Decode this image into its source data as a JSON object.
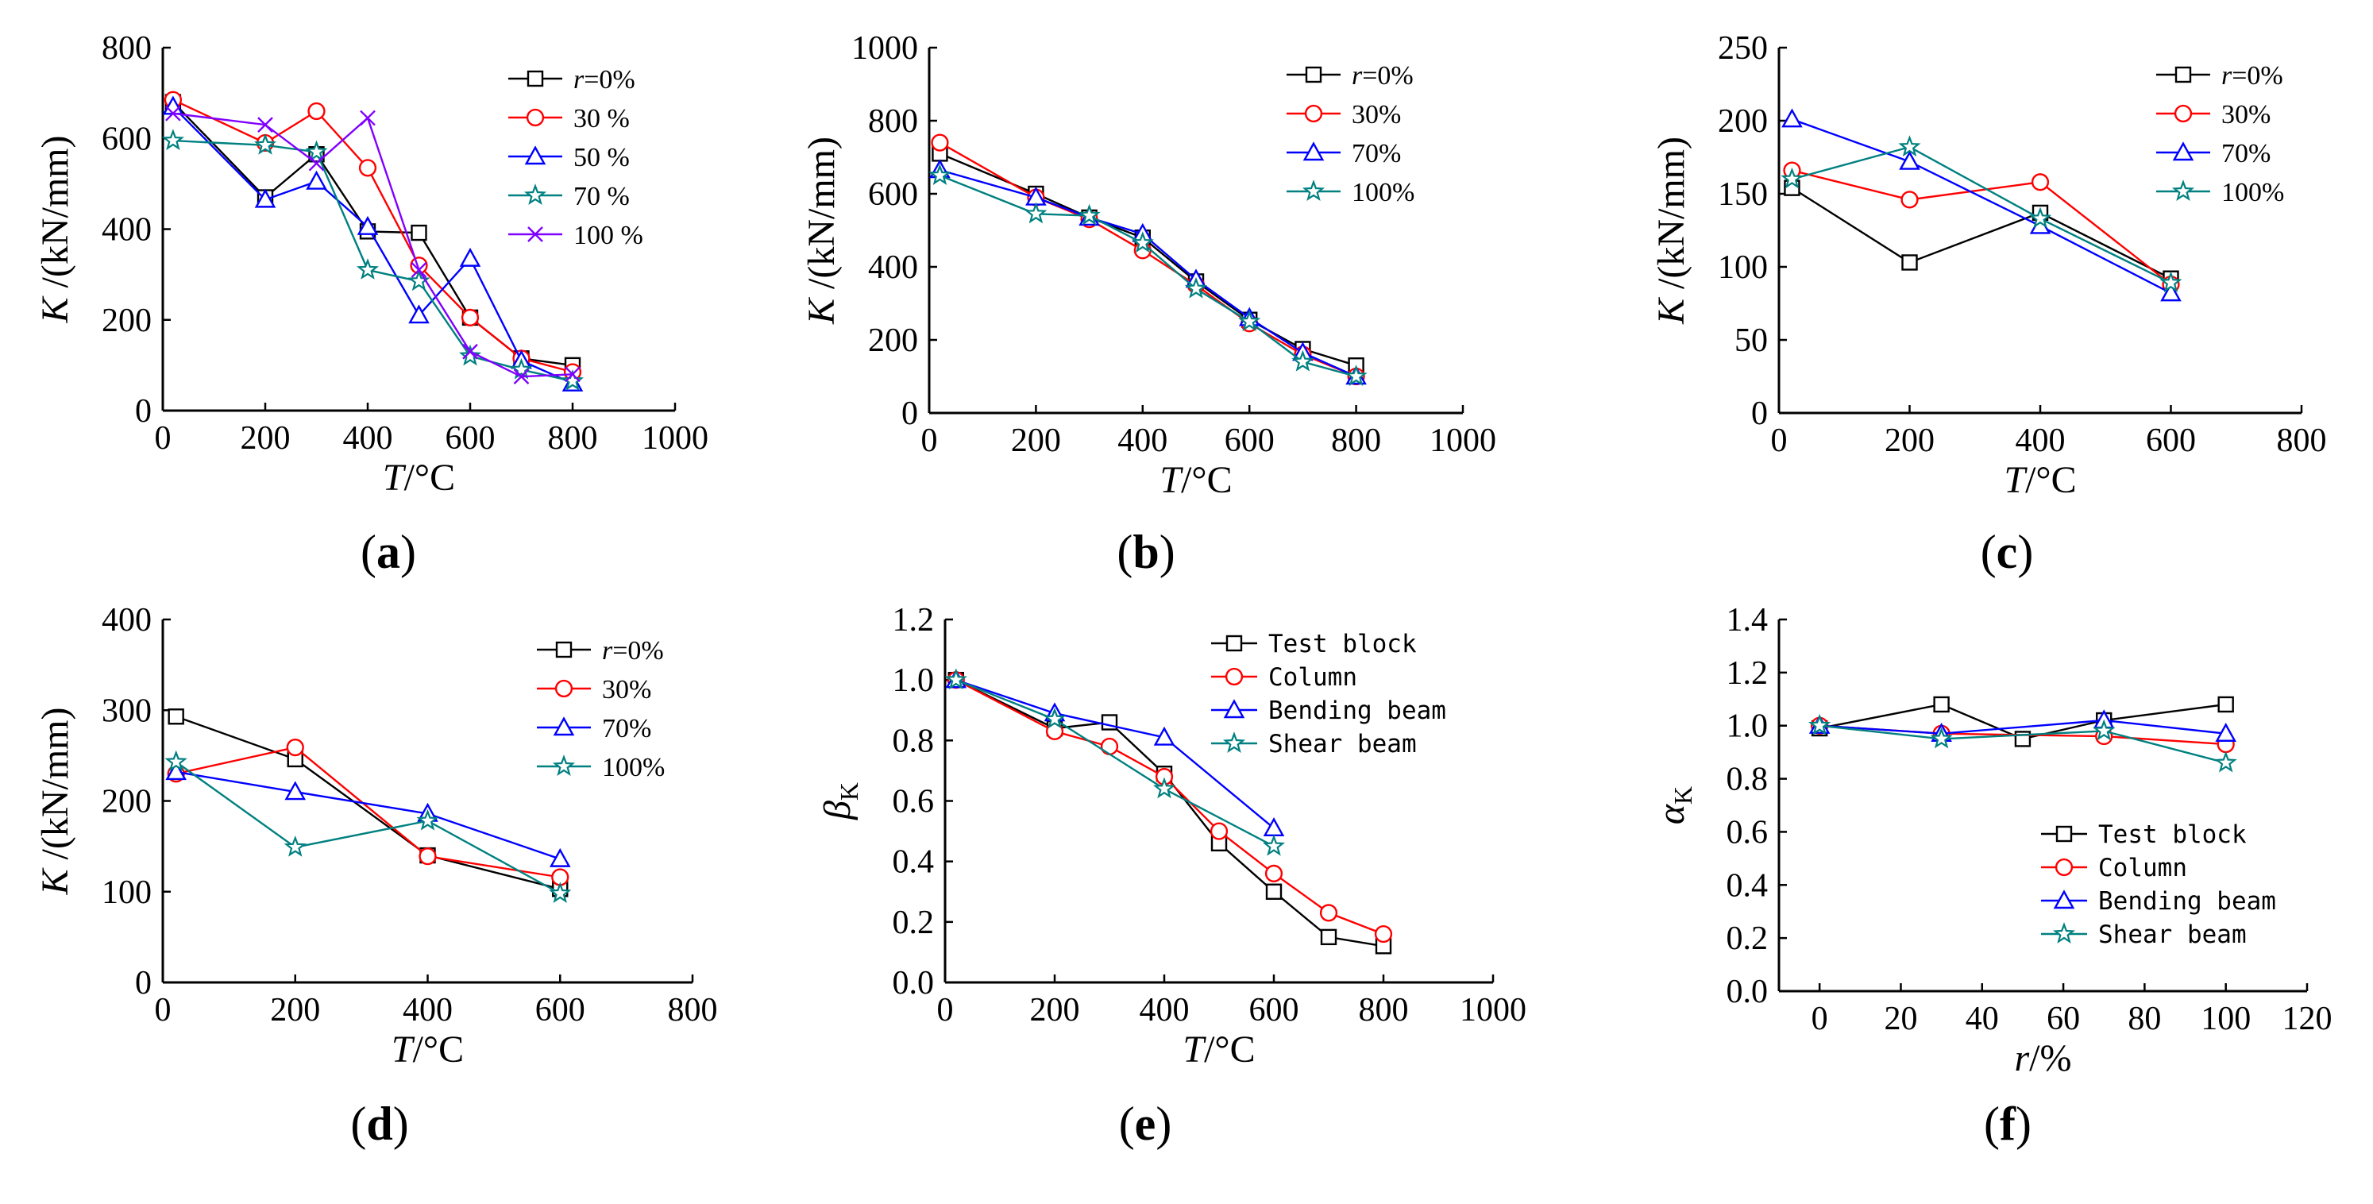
{
  "chart_data": [
    {
      "id": "a",
      "panel_label": "(a)",
      "type": "line",
      "xlabel_italic": "T",
      "xlabel_rest": "/°C",
      "ylabel_italic": "K",
      "ylabel_rest": " /(kN/mm)",
      "ylabel_sub": "",
      "xlim": [
        0,
        1000
      ],
      "ylim": [
        0,
        800
      ],
      "xticks": [
        0,
        200,
        400,
        600,
        800,
        1000
      ],
      "yticks": [
        0,
        200,
        400,
        600,
        800
      ],
      "ytick_decimals": 0,
      "legend_style": "serif",
      "legend_position": "top-right",
      "series": [
        {
          "name": "r=0%",
          "name_italic": "r",
          "name_rest": "=0%",
          "color": "#000000",
          "marker": "square",
          "x": [
            20,
            200,
            300,
            400,
            500,
            600,
            700,
            800
          ],
          "y": [
            680,
            470,
            565,
            395,
            392,
            205,
            115,
            100
          ]
        },
        {
          "name": "30 %",
          "color": "#ff0000",
          "marker": "circle",
          "x": [
            20,
            200,
            300,
            400,
            500,
            600,
            700,
            800
          ],
          "y": [
            685,
            590,
            660,
            535,
            320,
            205,
            115,
            85
          ]
        },
        {
          "name": "50 %",
          "color": "#0000ff",
          "marker": "triangle",
          "x": [
            20,
            200,
            300,
            400,
            500,
            600,
            700,
            800
          ],
          "y": [
            670,
            465,
            505,
            405,
            210,
            335,
            110,
            60
          ]
        },
        {
          "name": "70 %",
          "color": "#008080",
          "marker": "star",
          "x": [
            20,
            200,
            300,
            400,
            500,
            600,
            700,
            800
          ],
          "y": [
            595,
            585,
            570,
            310,
            285,
            120,
            90,
            65
          ]
        },
        {
          "name": "100 %",
          "color": "#8000ff",
          "marker": "x",
          "x": [
            20,
            200,
            300,
            400,
            500,
            600,
            700,
            800
          ],
          "y": [
            655,
            630,
            545,
            645,
            310,
            130,
            75,
            80
          ]
        }
      ]
    },
    {
      "id": "b",
      "panel_label": "(b)",
      "type": "line",
      "xlabel_italic": "T",
      "xlabel_rest": "/°C",
      "ylabel_italic": "K",
      "ylabel_rest": " /(kN/mm)",
      "ylabel_sub": "",
      "xlim": [
        0,
        1000
      ],
      "ylim": [
        0,
        1000
      ],
      "xticks": [
        0,
        200,
        400,
        600,
        800,
        1000
      ],
      "yticks": [
        0,
        200,
        400,
        600,
        800,
        1000
      ],
      "ytick_decimals": 0,
      "legend_style": "serif",
      "legend_position": "top-right",
      "series": [
        {
          "name": "r=0%",
          "name_italic": "r",
          "name_rest": "=0%",
          "color": "#000000",
          "marker": "square",
          "x": [
            20,
            200,
            300,
            400,
            500,
            600,
            700,
            800
          ],
          "y": [
            710,
            600,
            535,
            480,
            360,
            255,
            175,
            130
          ]
        },
        {
          "name": "30%",
          "color": "#ff0000",
          "marker": "circle",
          "x": [
            20,
            200,
            300,
            400,
            500,
            600,
            700,
            800
          ],
          "y": [
            740,
            590,
            530,
            445,
            350,
            245,
            160,
            100
          ]
        },
        {
          "name": "70%",
          "color": "#0000ff",
          "marker": "triangle",
          "x": [
            20,
            200,
            300,
            400,
            500,
            600,
            700,
            800
          ],
          "y": [
            665,
            590,
            535,
            490,
            365,
            260,
            165,
            100
          ]
        },
        {
          "name": "100%",
          "color": "#008080",
          "marker": "star",
          "x": [
            20,
            200,
            300,
            400,
            500,
            600,
            700,
            800
          ],
          "y": [
            650,
            545,
            540,
            465,
            340,
            250,
            140,
            100
          ]
        }
      ]
    },
    {
      "id": "c",
      "panel_label": "(c)",
      "type": "line",
      "xlabel_italic": "T",
      "xlabel_rest": "/°C",
      "ylabel_italic": "K",
      "ylabel_rest": " /(kN/mm)",
      "ylabel_sub": "",
      "xlim": [
        0,
        800
      ],
      "ylim": [
        0,
        250
      ],
      "xticks": [
        0,
        200,
        400,
        600,
        800
      ],
      "yticks": [
        0,
        50,
        100,
        150,
        200,
        250
      ],
      "ytick_decimals": 0,
      "legend_style": "serif",
      "legend_position": "top-right",
      "series": [
        {
          "name": "r=0%",
          "name_italic": "r",
          "name_rest": "=0%",
          "color": "#000000",
          "marker": "square",
          "x": [
            20,
            200,
            400,
            600
          ],
          "y": [
            154,
            103,
            137,
            92
          ]
        },
        {
          "name": "30%",
          "color": "#ff0000",
          "marker": "circle",
          "x": [
            20,
            200,
            400,
            600
          ],
          "y": [
            166,
            146,
            158,
            88
          ]
        },
        {
          "name": "70%",
          "color": "#0000ff",
          "marker": "triangle",
          "x": [
            20,
            200,
            400,
            600
          ],
          "y": [
            201,
            172,
            128,
            82
          ]
        },
        {
          "name": "100%",
          "color": "#008080",
          "marker": "star",
          "x": [
            20,
            200,
            400,
            600
          ],
          "y": [
            160,
            182,
            133,
            89
          ]
        }
      ]
    },
    {
      "id": "d",
      "panel_label": "(d)",
      "type": "line",
      "xlabel_italic": "T",
      "xlabel_rest": "/°C",
      "ylabel_italic": "K",
      "ylabel_rest": " /(kN/mm)",
      "ylabel_sub": "",
      "xlim": [
        0,
        800
      ],
      "ylim": [
        0,
        400
      ],
      "xticks": [
        0,
        200,
        400,
        600,
        800
      ],
      "yticks": [
        0,
        100,
        200,
        300,
        400
      ],
      "ytick_decimals": 0,
      "legend_style": "serif",
      "legend_position": "top-right",
      "series": [
        {
          "name": "r=0%",
          "name_italic": "r",
          "name_rest": "=0%",
          "color": "#000000",
          "marker": "square",
          "x": [
            20,
            200,
            400,
            600
          ],
          "y": [
            293,
            246,
            140,
            103
          ]
        },
        {
          "name": "30%",
          "color": "#ff0000",
          "marker": "circle",
          "x": [
            20,
            200,
            400,
            600
          ],
          "y": [
            230,
            259,
            139,
            116
          ]
        },
        {
          "name": "70%",
          "color": "#0000ff",
          "marker": "triangle",
          "x": [
            20,
            200,
            400,
            600
          ],
          "y": [
            232,
            210,
            186,
            136
          ]
        },
        {
          "name": "100%",
          "color": "#008080",
          "marker": "star",
          "x": [
            20,
            200,
            400,
            600
          ],
          "y": [
            243,
            149,
            178,
            98
          ]
        }
      ]
    },
    {
      "id": "e",
      "panel_label": "(e)",
      "type": "line",
      "xlabel_italic": "T",
      "xlabel_rest": "/°C",
      "ylabel_italic": "β",
      "ylabel_rest": "",
      "ylabel_sub": "K",
      "xlim": [
        0,
        1000
      ],
      "ylim": [
        0,
        1.2
      ],
      "xticks": [
        0,
        200,
        400,
        600,
        800,
        1000
      ],
      "yticks": [
        0.0,
        0.2,
        0.4,
        0.6,
        0.8,
        1.0,
        1.2
      ],
      "ytick_decimals": 1,
      "legend_style": "mono",
      "legend_position": "top-right",
      "series": [
        {
          "name": "Test block",
          "color": "#000000",
          "marker": "square",
          "x": [
            20,
            200,
            300,
            400,
            500,
            600,
            700,
            800
          ],
          "y": [
            1.0,
            0.84,
            0.86,
            0.69,
            0.46,
            0.3,
            0.15,
            0.12
          ]
        },
        {
          "name": "Column",
          "color": "#ff0000",
          "marker": "circle",
          "x": [
            20,
            200,
            300,
            400,
            500,
            600,
            700,
            800
          ],
          "y": [
            1.0,
            0.83,
            0.78,
            0.68,
            0.5,
            0.36,
            0.23,
            0.16
          ]
        },
        {
          "name": "Bending beam",
          "color": "#0000ff",
          "marker": "triangle",
          "x": [
            20,
            200,
            400,
            600
          ],
          "y": [
            1.0,
            0.89,
            0.81,
            0.51
          ]
        },
        {
          "name": "Shear beam",
          "color": "#008080",
          "marker": "star",
          "x": [
            20,
            200,
            400,
            600
          ],
          "y": [
            1.0,
            0.87,
            0.64,
            0.45
          ]
        }
      ]
    },
    {
      "id": "f",
      "panel_label": "(f)",
      "type": "line",
      "xlabel_italic": "r",
      "xlabel_rest": "/%",
      "ylabel_italic": "α",
      "ylabel_rest": "",
      "ylabel_sub": "K",
      "xlim": [
        -10,
        120
      ],
      "ylim": [
        0,
        1.4
      ],
      "xticks": [
        0,
        20,
        40,
        60,
        80,
        100,
        120
      ],
      "yticks": [
        0.0,
        0.2,
        0.4,
        0.6,
        0.8,
        1.0,
        1.2,
        1.4
      ],
      "ytick_decimals": 1,
      "legend_style": "mono",
      "legend_position": "bottom-right",
      "series": [
        {
          "name": "Test block",
          "color": "#000000",
          "marker": "square",
          "x": [
            0,
            30,
            50,
            70,
            100
          ],
          "y": [
            0.99,
            1.08,
            0.95,
            1.02,
            1.08
          ]
        },
        {
          "name": "Column",
          "color": "#ff0000",
          "marker": "circle",
          "x": [
            0,
            30,
            70,
            100
          ],
          "y": [
            1.0,
            0.97,
            0.96,
            0.93
          ]
        },
        {
          "name": "Bending beam",
          "color": "#0000ff",
          "marker": "triangle",
          "x": [
            0,
            30,
            70,
            100
          ],
          "y": [
            1.0,
            0.97,
            1.02,
            0.97
          ]
        },
        {
          "name": "Shear beam",
          "color": "#008080",
          "marker": "star",
          "x": [
            0,
            30,
            70,
            100
          ],
          "y": [
            1.0,
            0.95,
            0.98,
            0.86
          ]
        }
      ]
    }
  ]
}
